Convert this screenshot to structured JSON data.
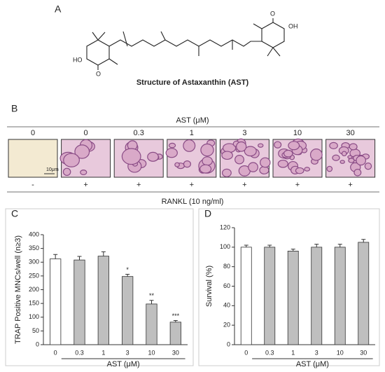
{
  "panel_a": {
    "label": "A",
    "structure_labels": [
      "O",
      "OH",
      "HO",
      "O"
    ],
    "caption": "Structure of Astaxanthin (AST)"
  },
  "panel_b": {
    "label": "B",
    "group_label": "AST (μM)",
    "headers": [
      "0",
      "0",
      "0.3",
      "1",
      "3",
      "10",
      "30"
    ],
    "scale_bar": "10μm",
    "rankl_signs": [
      "-",
      "+",
      "+",
      "+",
      "+",
      "+",
      "+"
    ],
    "rankl_label": "RANKL (10 ng/ml)"
  },
  "chart_data": [
    {
      "type": "bar",
      "panel": "C",
      "ylabel": "TRAP Positive MNCs/well (n≥3)",
      "xlabel": "AST (μM)",
      "categories": [
        "0",
        "0.3",
        "1",
        "3",
        "10",
        "30"
      ],
      "values": [
        312,
        308,
        322,
        248,
        148,
        82
      ],
      "errors": [
        16,
        13,
        16,
        8,
        13,
        6
      ],
      "annotations": [
        null,
        null,
        null,
        "*",
        "**",
        "***"
      ],
      "colors": [
        "#ffffff",
        "#bfbfbf",
        "#bfbfbf",
        "#bfbfbf",
        "#bfbfbf",
        "#bfbfbf"
      ],
      "ylim": [
        0,
        400
      ],
      "yticks": [
        0,
        50,
        100,
        150,
        200,
        250,
        300,
        350,
        400
      ]
    },
    {
      "type": "bar",
      "panel": "D",
      "ylabel": "Survival (%)",
      "xlabel": "AST (μM)",
      "categories": [
        "0",
        "0.3",
        "1",
        "3",
        "10",
        "30"
      ],
      "values": [
        100,
        100,
        96,
        100,
        100,
        105
      ],
      "errors": [
        2,
        2,
        2,
        3,
        3,
        3
      ],
      "annotations": [
        null,
        null,
        null,
        null,
        null,
        null
      ],
      "colors": [
        "#ffffff",
        "#bfbfbf",
        "#bfbfbf",
        "#bfbfbf",
        "#bfbfbf",
        "#bfbfbf"
      ],
      "ylim": [
        0,
        120
      ],
      "yticks": [
        0,
        20,
        40,
        60,
        80,
        100,
        120
      ]
    }
  ]
}
